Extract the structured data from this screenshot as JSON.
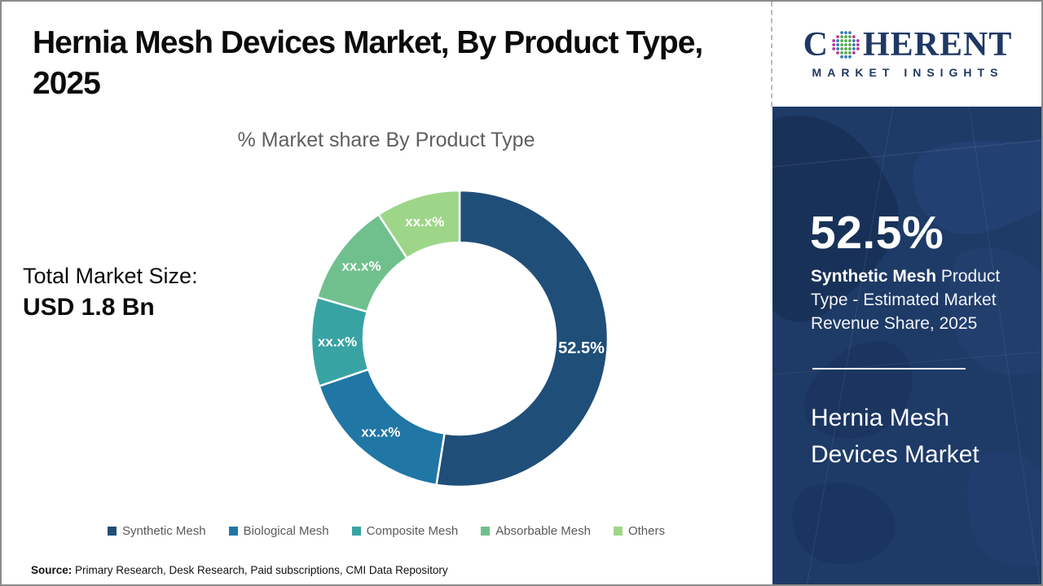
{
  "header": {
    "title": "Hernia Mesh Devices Market, By Product Type,\n2025",
    "logo": {
      "brand_c": "C",
      "brand_rest": "HERENT",
      "brand_sub": "MARKET INSIGHTS",
      "globe_icon": "dotted-globe-icon",
      "colors": {
        "navy": "#1f3864",
        "green": "#55ab4e",
        "blue": "#3878b4",
        "magenta": "#b5399e"
      }
    }
  },
  "left": {
    "total_label": "Total Market Size:",
    "total_value": "USD 1.8 Bn",
    "source_label": "Source:",
    "source_text": " Primary Research, Desk Research, Paid subscriptions, CMI Data Repository"
  },
  "chart_data": {
    "type": "pie",
    "subtype": "donut",
    "title": "% Market share By Product Type",
    "categories": [
      "Synthetic Mesh",
      "Biological Mesh",
      "Composite Mesh",
      "Absorbable Mesh",
      "Others"
    ],
    "values": [
      52.5,
      17.3,
      9.7,
      11.3,
      9.2
    ],
    "labels": [
      "52.5%",
      "xx.x%",
      "xx.x%",
      "xx.x%",
      "xx.x%"
    ],
    "colors": [
      "#1f4e79",
      "#2076a5",
      "#38a3a3",
      "#70c08e",
      "#9ed689"
    ],
    "inner_radius_ratio": 0.65,
    "start_angle_deg": 0,
    "legend_position": "bottom"
  },
  "sidebar": {
    "stat_value": "52.5%",
    "stat_bold": "Synthetic Mesh",
    "stat_rest": " Product Type - Estimated Market Revenue Share, 2025",
    "panel_title": "Hernia Mesh Devices Market",
    "bg_color": "#1e3a67"
  }
}
